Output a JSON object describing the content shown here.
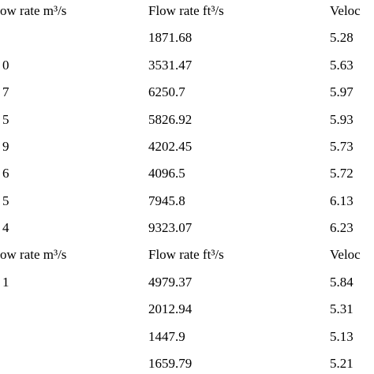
{
  "table": {
    "sections": [
      {
        "header": [
          "ow rate m³/s",
          "Flow rate ft³/s",
          "Veloc"
        ],
        "rows": [
          [
            null,
            "1871.68",
            "5.28"
          ],
          [
            "0",
            "3531.47",
            "5.63"
          ],
          [
            "7",
            "6250.7",
            "5.97"
          ],
          [
            "5",
            "5826.92",
            "5.93"
          ],
          [
            "9",
            "4202.45",
            "5.73"
          ],
          [
            "6",
            "4096.5",
            "5.72"
          ],
          [
            "5",
            "7945.8",
            "6.13"
          ],
          [
            "4",
            "9323.07",
            "6.23"
          ]
        ]
      },
      {
        "header": [
          "ow rate m³/s",
          "Flow rate ft³/s",
          "Veloc"
        ],
        "rows": [
          [
            "1",
            "4979.37",
            "5.84"
          ],
          [
            null,
            "2012.94",
            "5.31"
          ],
          [
            null,
            "1447.9",
            "5.13"
          ],
          [
            null,
            "1659.79",
            "5.21"
          ]
        ]
      }
    ]
  }
}
